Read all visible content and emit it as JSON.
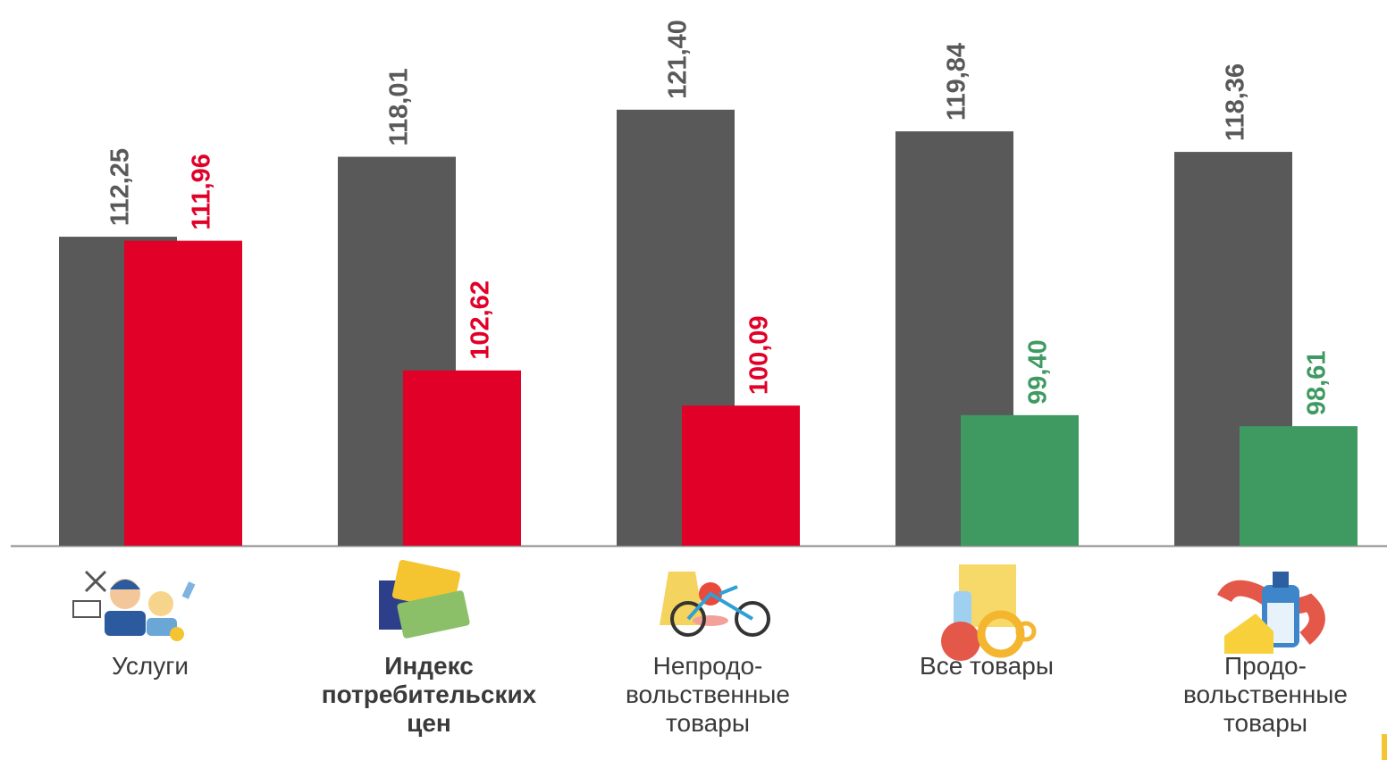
{
  "chart_data": {
    "type": "bar",
    "categories": [
      "Услуги",
      "Индекс\nпотребительских\nцен",
      "Непродо-\nвольственные\nтовары",
      "Все товары",
      "Продо-\nвольственные\nтовары"
    ],
    "bold_category": 1,
    "ylim": [
      90,
      129.3
    ],
    "series": [
      {
        "color": "#595959",
        "values": [
          112.25,
          118.01,
          121.4,
          119.84,
          118.36
        ],
        "value_labels": [
          "112,25",
          "118,01",
          "121,40",
          "119,84",
          "118,36"
        ]
      },
      {
        "colors": [
          "#e10028",
          "#e10028",
          "#e10028",
          "#3f9a62",
          "#3f9a62"
        ],
        "values": [
          111.96,
          102.62,
          100.09,
          99.4,
          98.61
        ],
        "value_labels": [
          "111,96",
          "102,62",
          "100,09",
          "99,40",
          "98,61"
        ]
      }
    ]
  }
}
